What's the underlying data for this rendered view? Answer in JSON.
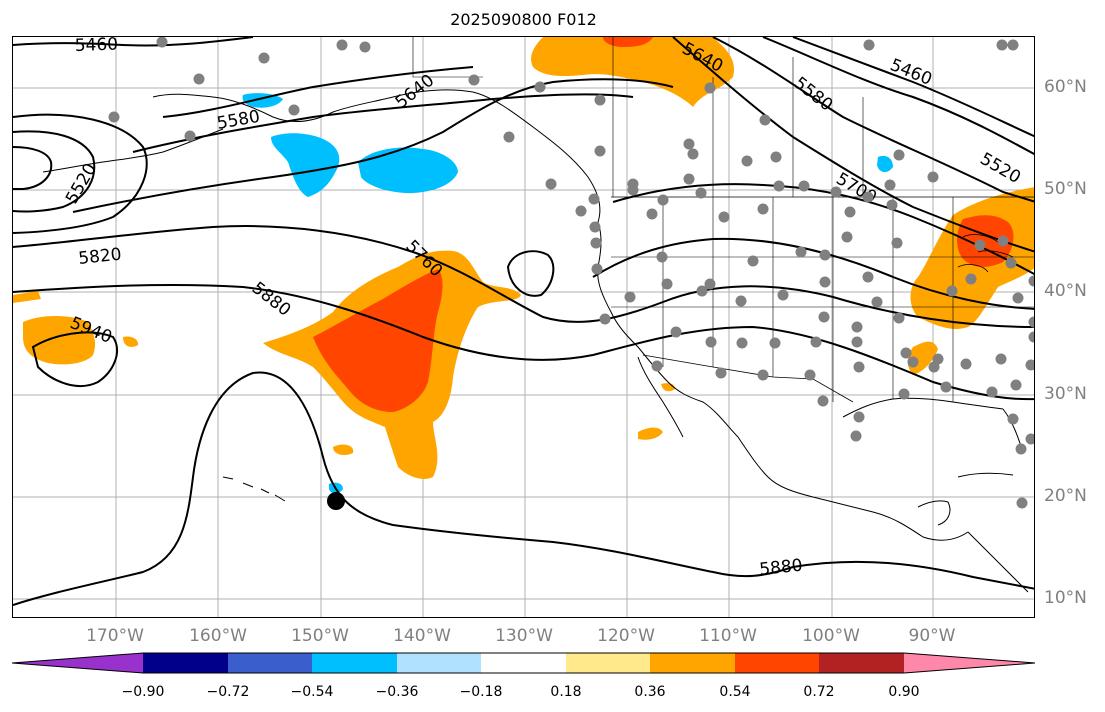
{
  "title": "2025090800 F012",
  "contour_labels": [
    "5460",
    "5580",
    "5640",
    "5520",
    "5820",
    "5760",
    "5880",
    "5940",
    "5700"
  ],
  "lon_labels": [
    "170°W",
    "160°W",
    "150°W",
    "140°W",
    "130°W",
    "120°W",
    "110°W",
    "100°W",
    "90°W"
  ],
  "lat_labels": [
    "60°N",
    "50°N",
    "40°N",
    "30°N",
    "20°N",
    "10°N"
  ],
  "colorbar": {
    "ticks": [
      "−0.90",
      "−0.72",
      "−0.54",
      "−0.36",
      "−0.18",
      "0.18",
      "0.36",
      "0.54",
      "0.72",
      "0.90"
    ],
    "colors": [
      "#9932cc",
      "#00008b",
      "#3a5fcd",
      "#00bfff",
      "#b0e2ff",
      "#ffffff",
      "#ffe98a",
      "#ffa500",
      "#ff4500",
      "#b22222",
      "#ff88aa"
    ]
  },
  "colors": {
    "orange": "#ffa500",
    "red_orange": "#ff4500",
    "deep_sky_blue": "#00bfff",
    "yellow": "#ffe98a",
    "station_dot": "#808080",
    "grid": "#b0b0b0"
  }
}
